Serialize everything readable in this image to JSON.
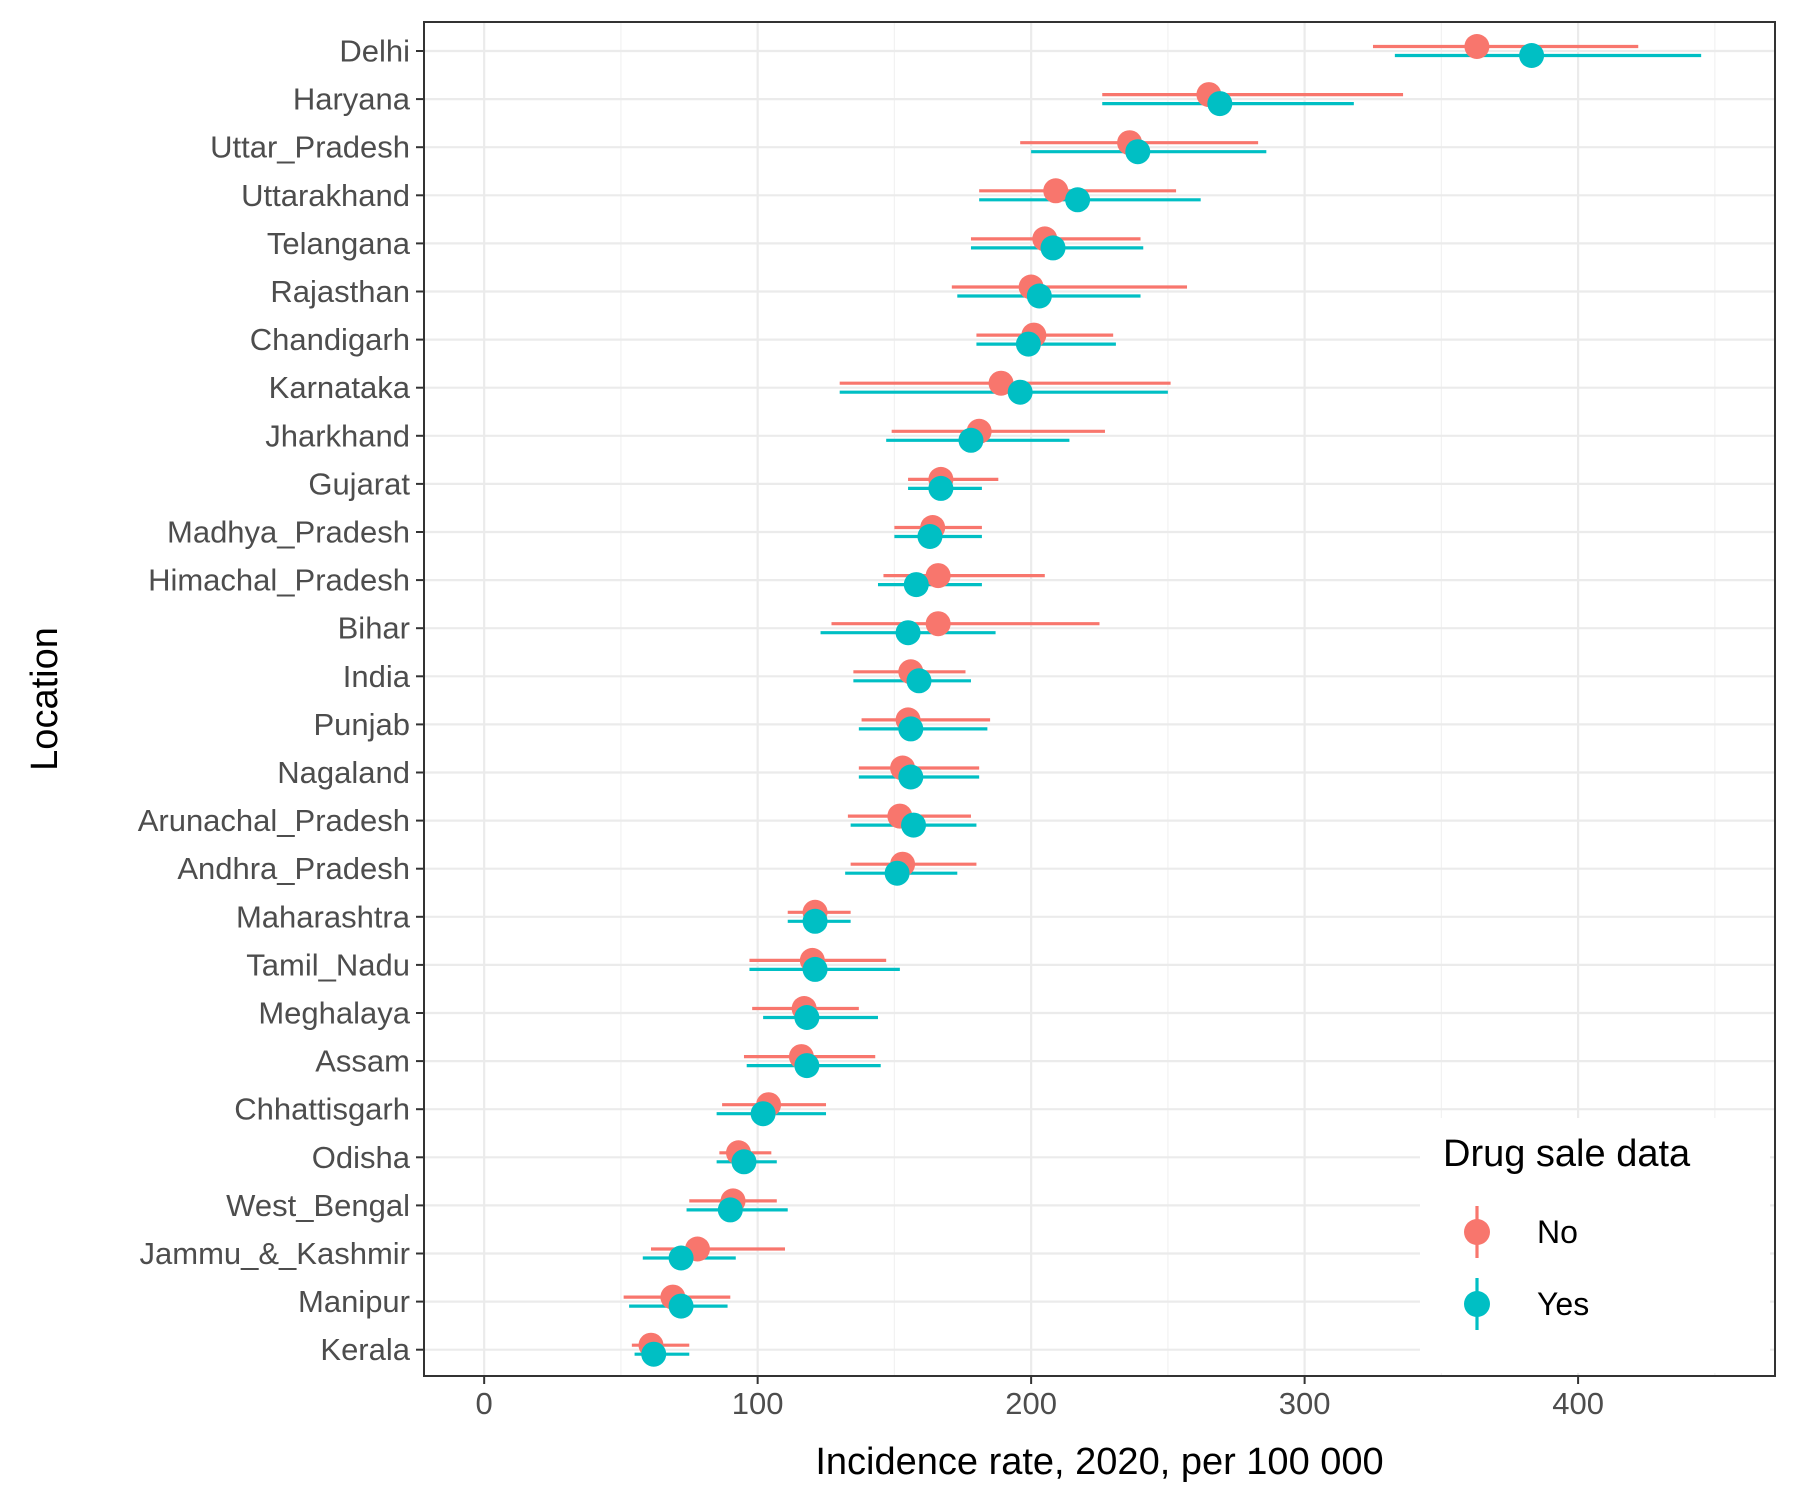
{
  "chart_data": {
    "type": "forest",
    "title": "",
    "xlabel": "Incidence rate, 2020, per 100 000",
    "ylabel": "Location",
    "xlim": [
      -22,
      472
    ],
    "xticks": [
      0,
      100,
      200,
      300,
      400
    ],
    "grid": true,
    "legend": {
      "title": "Drug sale data",
      "placement": "bottom-right",
      "entries": [
        {
          "label": "No",
          "color": "#F8766D"
        },
        {
          "label": "Yes",
          "color": "#00BFC4"
        }
      ]
    },
    "categories": [
      "Delhi",
      "Haryana",
      "Uttar_Pradesh",
      "Uttarakhand",
      "Telangana",
      "Rajasthan",
      "Chandigarh",
      "Karnataka",
      "Jharkhand",
      "Gujarat",
      "Madhya_Pradesh",
      "Himachal_Pradesh",
      "Bihar",
      "India",
      "Punjab",
      "Nagaland",
      "Arunachal_Pradesh",
      "Andhra_Pradesh",
      "Maharashtra",
      "Tamil_Nadu",
      "Meghalaya",
      "Assam",
      "Chhattisgarh",
      "Odisha",
      "West_Bengal",
      "Jammu_&_Kashmir",
      "Manipur",
      "Kerala"
    ],
    "series": [
      {
        "name": "No",
        "color": "#F8766D",
        "values": [
          363,
          265,
          236,
          209,
          205,
          200,
          201,
          189,
          181,
          167,
          164,
          166,
          166,
          156,
          155,
          153,
          152,
          153,
          121,
          120,
          117,
          116,
          104,
          93,
          91,
          78,
          69,
          61
        ],
        "lower": [
          325,
          226,
          196,
          181,
          178,
          171,
          180,
          130,
          149,
          155,
          150,
          146,
          127,
          135,
          138,
          137,
          133,
          134,
          111,
          97,
          98,
          95,
          87,
          86,
          75,
          61,
          51,
          54
        ],
        "upper": [
          422,
          336,
          283,
          253,
          240,
          257,
          230,
          251,
          227,
          188,
          182,
          205,
          225,
          176,
          185,
          181,
          178,
          180,
          134,
          147,
          137,
          143,
          125,
          105,
          107,
          110,
          90,
          75
        ]
      },
      {
        "name": "Yes",
        "color": "#00BFC4",
        "values": [
          383,
          269,
          239,
          217,
          208,
          203,
          199,
          196,
          178,
          167,
          163,
          158,
          155,
          159,
          156,
          156,
          157,
          151,
          121,
          121,
          118,
          118,
          102,
          95,
          90,
          72,
          72,
          62
        ],
        "lower": [
          333,
          226,
          200,
          181,
          178,
          173,
          180,
          130,
          147,
          155,
          150,
          144,
          123,
          135,
          137,
          137,
          134,
          132,
          111,
          97,
          102,
          96,
          85,
          85,
          74,
          58,
          53,
          55
        ],
        "upper": [
          445,
          318,
          286,
          262,
          241,
          240,
          231,
          250,
          214,
          182,
          182,
          182,
          187,
          178,
          184,
          181,
          180,
          173,
          134,
          152,
          144,
          145,
          125,
          107,
          111,
          92,
          89,
          75
        ]
      }
    ]
  }
}
